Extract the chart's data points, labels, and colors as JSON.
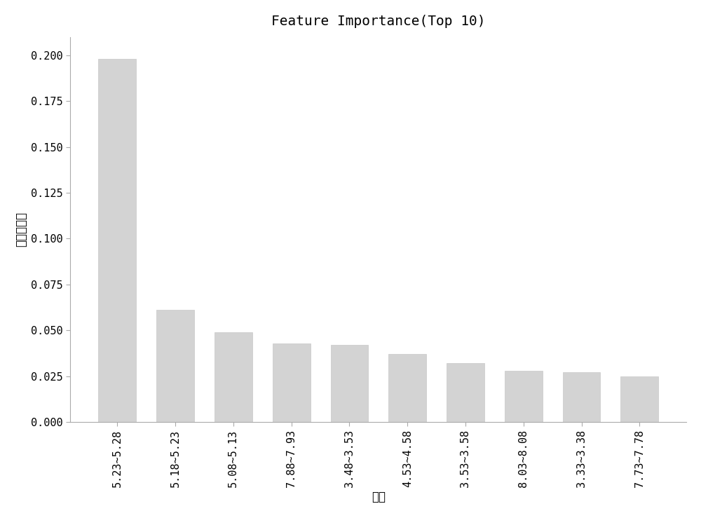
{
  "title": "Feature Importance(Top 10)",
  "xlabel": "特征",
  "ylabel": "重要性程度",
  "categories": [
    "5.23~5.28",
    "5.18~5.23",
    "5.08~5.13",
    "7.88~7.93",
    "3.48~3.53",
    "4.53~4.58",
    "3.53~3.58",
    "8.03~8.08",
    "3.33~3.38",
    "7.73~7.78"
  ],
  "values": [
    0.198,
    0.061,
    0.049,
    0.043,
    0.042,
    0.037,
    0.032,
    0.028,
    0.027,
    0.025
  ],
  "bar_color": "#d3d3d3",
  "bar_edge_color": "#c8c8c8",
  "ylim": [
    0,
    0.21
  ],
  "yticks": [
    0.0,
    0.025,
    0.05,
    0.075,
    0.1,
    0.125,
    0.15,
    0.175,
    0.2
  ],
  "background_color": "#ffffff",
  "title_fontsize": 14,
  "axis_fontsize": 12,
  "tick_fontsize": 11
}
